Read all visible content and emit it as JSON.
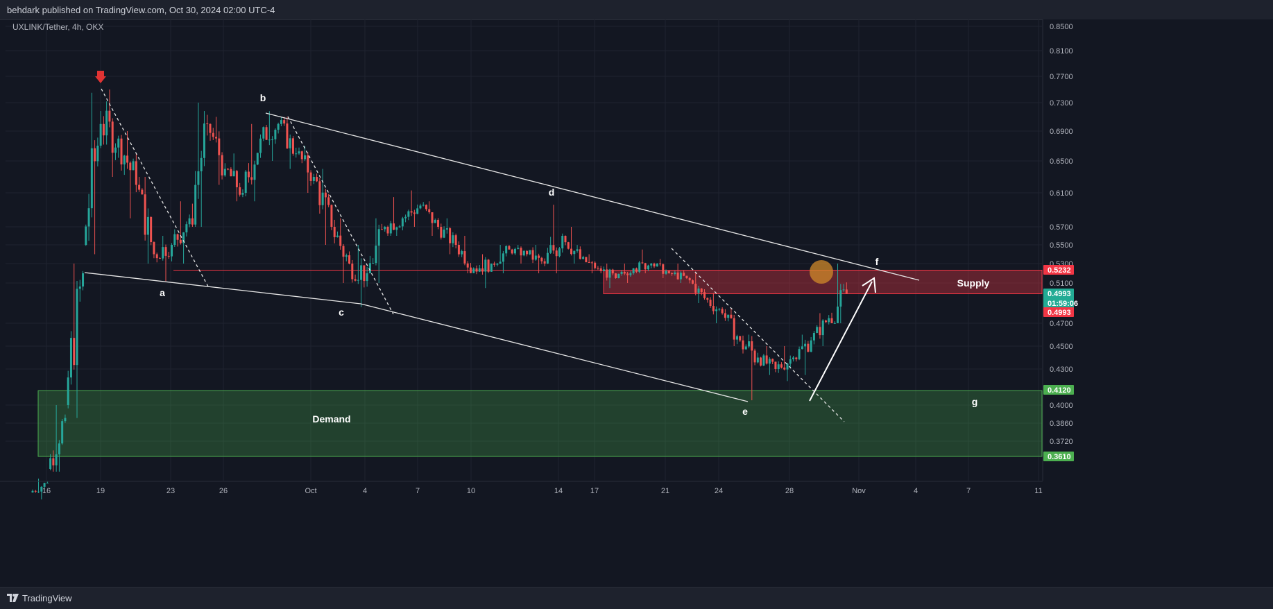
{
  "header": {
    "publisher_line": "behdark published on TradingView.com, Oct 30, 2024 02:00 UTC-4"
  },
  "footer": {
    "brand": "TradingView"
  },
  "chart_data": {
    "type": "candlestick",
    "symbol_line": "UXLINK/Tether, 4h, OKX",
    "y_ticks": [
      "0.8500",
      "0.8100",
      "0.7700",
      "0.7300",
      "0.6900",
      "0.6500",
      "0.6100",
      "0.5700",
      "0.5500",
      "0.5300",
      "0.5100",
      "0.4700",
      "0.4500",
      "0.4300",
      "0.4000",
      "0.3860",
      "0.3720"
    ],
    "x_ticks": [
      "16",
      "19",
      "23",
      "26",
      "Oct",
      "4",
      "7",
      "10",
      "14",
      "17",
      "21",
      "24",
      "28",
      "Nov",
      "4",
      "7",
      "11"
    ],
    "price_tags": [
      {
        "value": "0.5232",
        "color": "#f23645"
      },
      {
        "value": "0.4993",
        "countdown": "01:59:06",
        "color": "#22ab94"
      },
      {
        "value": "0.4993",
        "color": "#f23645"
      },
      {
        "value": "0.4120",
        "color": "#4caf50"
      },
      {
        "value": "0.3610",
        "color": "#4caf50"
      }
    ],
    "zones": [
      {
        "name": "Supply",
        "top": 0.5232,
        "bottom": 0.4993,
        "color": "#f23645"
      },
      {
        "name": "Demand",
        "top": 0.412,
        "bottom": 0.361,
        "color": "#4caf50"
      }
    ],
    "wave_labels": [
      "a",
      "b",
      "c",
      "d",
      "e",
      "f",
      "g"
    ],
    "pivots": [
      {
        "label": "a",
        "date": "Sep 22",
        "price": 0.512
      },
      {
        "label": "b",
        "date": "Sep 28",
        "price": 0.718
      },
      {
        "label": "c",
        "date": "Oct 3",
        "price": 0.486
      },
      {
        "label": "d",
        "date": "Oct 14",
        "price": 0.596
      },
      {
        "label": "e",
        "date": "Oct 25",
        "price": 0.404
      },
      {
        "label": "f",
        "date": "Oct 30",
        "price": 0.53
      }
    ],
    "candles_ohlc_summary": [
      {
        "date": "Sep 15",
        "open": 0.335,
        "high": 0.345,
        "low": 0.33,
        "close": 0.342
      },
      {
        "date": "Sep 16",
        "open": 0.352,
        "high": 0.4,
        "low": 0.35,
        "close": 0.39
      },
      {
        "date": "Sep 17",
        "open": 0.4,
        "high": 0.53,
        "low": 0.39,
        "close": 0.52
      },
      {
        "date": "Sep 18",
        "open": 0.55,
        "high": 0.745,
        "low": 0.54,
        "close": 0.7
      },
      {
        "date": "Sep 19",
        "open": 0.7,
        "high": 0.75,
        "low": 0.63,
        "close": 0.68
      },
      {
        "date": "Sep 20",
        "open": 0.68,
        "high": 0.69,
        "low": 0.58,
        "close": 0.62
      },
      {
        "date": "Sep 21",
        "open": 0.62,
        "high": 0.63,
        "low": 0.53,
        "close": 0.54
      },
      {
        "date": "Sep 22",
        "open": 0.54,
        "high": 0.56,
        "low": 0.512,
        "close": 0.55
      },
      {
        "date": "Sep 23",
        "open": 0.55,
        "high": 0.6,
        "low": 0.53,
        "close": 0.58
      },
      {
        "date": "Sep 24",
        "open": 0.58,
        "high": 0.73,
        "low": 0.57,
        "close": 0.7
      },
      {
        "date": "Sep 25",
        "open": 0.7,
        "high": 0.71,
        "low": 0.62,
        "close": 0.64
      },
      {
        "date": "Sep 26",
        "open": 0.64,
        "high": 0.66,
        "low": 0.6,
        "close": 0.61
      },
      {
        "date": "Sep 27",
        "open": 0.61,
        "high": 0.7,
        "low": 0.6,
        "close": 0.68
      },
      {
        "date": "Sep 28",
        "open": 0.68,
        "high": 0.718,
        "low": 0.65,
        "close": 0.7
      },
      {
        "date": "Sep 29",
        "open": 0.7,
        "high": 0.71,
        "low": 0.64,
        "close": 0.66
      },
      {
        "date": "Sep 30",
        "open": 0.66,
        "high": 0.67,
        "low": 0.61,
        "close": 0.63
      },
      {
        "date": "Oct 1",
        "open": 0.63,
        "high": 0.64,
        "low": 0.55,
        "close": 0.57
      },
      {
        "date": "Oct 2",
        "open": 0.57,
        "high": 0.58,
        "low": 0.51,
        "close": 0.53
      },
      {
        "date": "Oct 3",
        "open": 0.53,
        "high": 0.55,
        "low": 0.486,
        "close": 0.52
      },
      {
        "date": "Oct 4",
        "open": 0.52,
        "high": 0.58,
        "low": 0.51,
        "close": 0.57
      },
      {
        "date": "Oct 5",
        "open": 0.57,
        "high": 0.605,
        "low": 0.56,
        "close": 0.58
      },
      {
        "date": "Oct 6",
        "open": 0.58,
        "high": 0.613,
        "low": 0.57,
        "close": 0.595
      },
      {
        "date": "Oct 7",
        "open": 0.595,
        "high": 0.6,
        "low": 0.56,
        "close": 0.57
      },
      {
        "date": "Oct 8",
        "open": 0.57,
        "high": 0.58,
        "low": 0.54,
        "close": 0.55
      },
      {
        "date": "Oct 9",
        "open": 0.55,
        "high": 0.56,
        "low": 0.52,
        "close": 0.525
      },
      {
        "date": "Oct 10",
        "open": 0.525,
        "high": 0.54,
        "low": 0.505,
        "close": 0.53
      },
      {
        "date": "Oct 11",
        "open": 0.53,
        "high": 0.55,
        "low": 0.52,
        "close": 0.545
      },
      {
        "date": "Oct 12",
        "open": 0.545,
        "high": 0.55,
        "low": 0.53,
        "close": 0.54
      },
      {
        "date": "Oct 13",
        "open": 0.54,
        "high": 0.55,
        "low": 0.52,
        "close": 0.53
      },
      {
        "date": "Oct 14",
        "open": 0.53,
        "high": 0.596,
        "low": 0.52,
        "close": 0.56
      },
      {
        "date": "Oct 15",
        "open": 0.56,
        "high": 0.57,
        "low": 0.53,
        "close": 0.535
      },
      {
        "date": "Oct 16",
        "open": 0.535,
        "high": 0.54,
        "low": 0.52,
        "close": 0.525
      },
      {
        "date": "Oct 17",
        "open": 0.525,
        "high": 0.53,
        "low": 0.505,
        "close": 0.515
      },
      {
        "date": "Oct 18",
        "open": 0.515,
        "high": 0.53,
        "low": 0.51,
        "close": 0.525
      },
      {
        "date": "Oct 19",
        "open": 0.525,
        "high": 0.545,
        "low": 0.52,
        "close": 0.53
      },
      {
        "date": "Oct 20",
        "open": 0.53,
        "high": 0.535,
        "low": 0.515,
        "close": 0.52
      },
      {
        "date": "Oct 21",
        "open": 0.52,
        "high": 0.53,
        "low": 0.51,
        "close": 0.515
      },
      {
        "date": "Oct 22",
        "open": 0.515,
        "high": 0.52,
        "low": 0.49,
        "close": 0.495
      },
      {
        "date": "Oct 23",
        "open": 0.495,
        "high": 0.5,
        "low": 0.47,
        "close": 0.48
      },
      {
        "date": "Oct 24",
        "open": 0.48,
        "high": 0.485,
        "low": 0.45,
        "close": 0.455
      },
      {
        "date": "Oct 25",
        "open": 0.455,
        "high": 0.46,
        "low": 0.404,
        "close": 0.44
      },
      {
        "date": "Oct 26",
        "open": 0.44,
        "high": 0.45,
        "low": 0.425,
        "close": 0.43
      },
      {
        "date": "Oct 27",
        "open": 0.43,
        "high": 0.45,
        "low": 0.42,
        "close": 0.44
      },
      {
        "date": "Oct 28",
        "open": 0.44,
        "high": 0.46,
        "low": 0.425,
        "close": 0.455
      },
      {
        "date": "Oct 29",
        "open": 0.455,
        "high": 0.48,
        "low": 0.45,
        "close": 0.475
      },
      {
        "date": "Oct 30",
        "open": 0.475,
        "high": 0.53,
        "low": 0.47,
        "close": 0.4993
      }
    ],
    "colors": {
      "up": "#26a69a",
      "down": "#ef5350",
      "background": "#131722",
      "grid": "#1e222d"
    },
    "grid": true
  }
}
